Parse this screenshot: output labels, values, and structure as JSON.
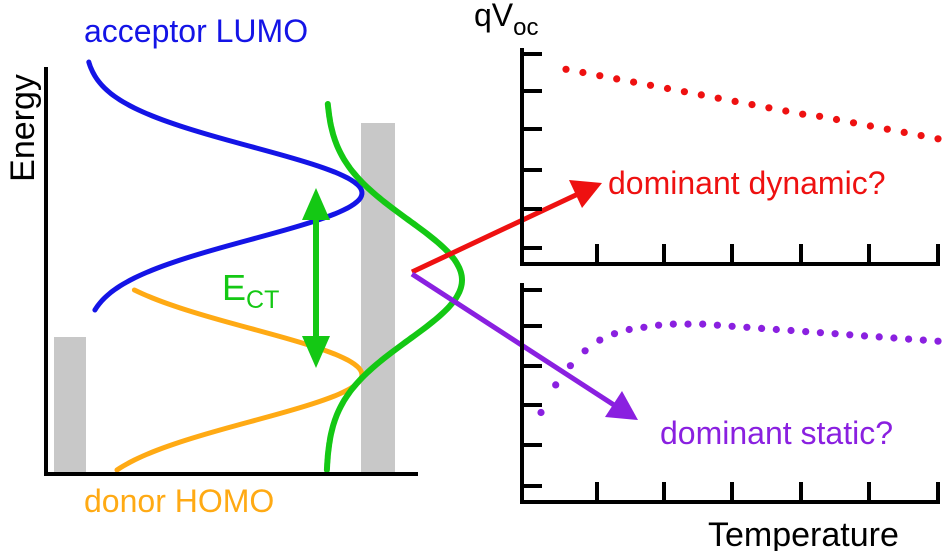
{
  "colors": {
    "acceptor": "#1414e6",
    "donor": "#ffaa14",
    "ct_state": "#14c814",
    "dynamic": "#ee1111",
    "static": "#8a20e0",
    "axis": "#000000",
    "bar": "#c8c8c8"
  },
  "left_panel": {
    "ylabel": "Energy",
    "acceptor_label": "acceptor LUMO",
    "donor_label": "donor HOMO",
    "ect_main": "E",
    "ect_sub": "CT"
  },
  "right_panels": {
    "ylabel_main": "qV",
    "ylabel_sub": "oc",
    "xlabel": "Temperature",
    "dynamic_label": "dominant dynamic?",
    "static_label": "dominant static?",
    "top_trend": [
      0.91,
      0.895,
      0.88,
      0.865,
      0.85,
      0.835,
      0.82,
      0.805,
      0.79,
      0.775,
      0.76,
      0.745,
      0.73,
      0.715,
      0.7,
      0.69,
      0.675,
      0.66,
      0.645,
      0.63,
      0.615,
      0.6,
      0.585
    ],
    "bottom_trend": [
      0.42,
      0.55,
      0.64,
      0.71,
      0.76,
      0.79,
      0.81,
      0.82,
      0.83,
      0.835,
      0.835,
      0.835,
      0.83,
      0.825,
      0.82,
      0.815,
      0.81,
      0.805,
      0.8,
      0.795,
      0.79,
      0.785,
      0.78,
      0.775,
      0.77,
      0.765,
      0.76,
      0.755
    ]
  }
}
